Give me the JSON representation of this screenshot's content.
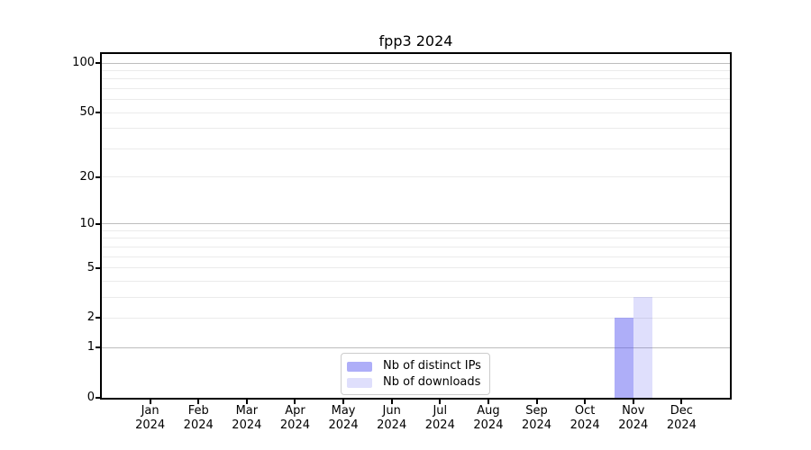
{
  "chart_data": {
    "type": "bar",
    "title": "fpp3 2024",
    "xlabel": "",
    "ylabel": "",
    "categories": [
      "Jan\n2024",
      "Feb\n2024",
      "Mar\n2024",
      "Apr\n2024",
      "May\n2024",
      "Jun\n2024",
      "Jul\n2024",
      "Aug\n2024",
      "Sep\n2024",
      "Oct\n2024",
      "Nov\n2024",
      "Dec\n2024"
    ],
    "series": [
      {
        "name": "Nb of distinct IPs",
        "color": "rgba(85,85,240,0.48)",
        "values": [
          0,
          0,
          0,
          0,
          0,
          0,
          0,
          0,
          0,
          0,
          2,
          0
        ]
      },
      {
        "name": "Nb of downloads",
        "color": "rgba(85,85,240,0.19)",
        "values": [
          0,
          0,
          0,
          0,
          0,
          0,
          0,
          0,
          0,
          0,
          3,
          0
        ]
      }
    ],
    "y_scale": "log1p",
    "ylim": [
      0,
      100
    ],
    "y_ticks": [
      0,
      1,
      2,
      5,
      10,
      20,
      50,
      100
    ],
    "y_gridlines_major": [
      1,
      10,
      100
    ],
    "y_gridlines_minor": [
      2,
      3,
      4,
      5,
      6,
      7,
      8,
      9,
      20,
      30,
      40,
      50,
      60,
      70,
      80,
      90
    ],
    "grid": true,
    "legend_position": "lower center",
    "colors": {
      "axis": "#000000",
      "grid_major": "#bdbdbd",
      "grid_minor": "#ebebeb",
      "text": "#000000",
      "legend_border": "#cccccc",
      "background": "#ffffff"
    }
  }
}
